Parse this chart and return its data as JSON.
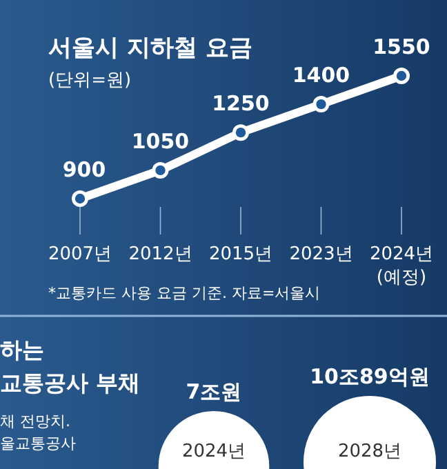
{
  "chart_data": [
    {
      "type": "line",
      "title": "서울시 지하철 요금",
      "subtitle": "(단위=원)",
      "categories": [
        "2007년",
        "2012년",
        "2015년",
        "2023년",
        "2024년 (예정)"
      ],
      "series": [
        {
          "color": "#ffffff",
          "values": [
            900,
            1050,
            1250,
            1400,
            1550
          ]
        }
      ],
      "data_labels": true,
      "marker": "circle",
      "line_style": "solid",
      "annotations": [
        "*교통카드 사용 요금 기준. 자료=서울시"
      ]
    },
    {
      "type": "other",
      "title": "하는",
      "subtitle": "교통공사 부채",
      "categories": [
        "2024년",
        "2028년"
      ],
      "values": [
        7,
        10.0089
      ],
      "colors": [
        "#ffffff",
        "#ffffff"
      ],
      "value_labels": [
        "7조원",
        "10조89억원"
      ],
      "annotations": [
        "채 전망치.",
        "울교통공사"
      ]
    }
  ]
}
